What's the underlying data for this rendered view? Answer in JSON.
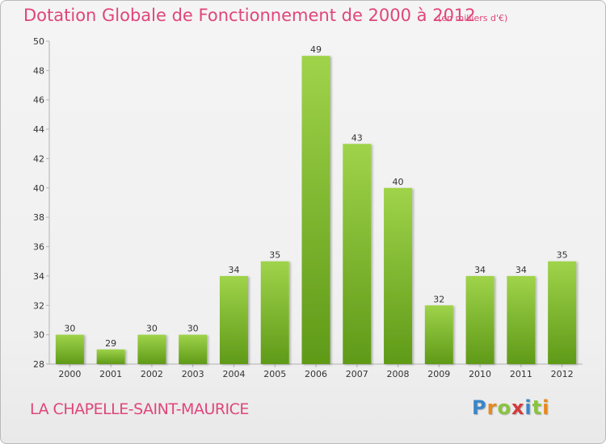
{
  "header": {
    "title": "Dotation Globale de Fonctionnement de 2000 à 2012",
    "subtitle": "(en milliers d'€)"
  },
  "footer": {
    "location": "LA CHAPELLE-SAINT-MAURICE",
    "brand": "Proxiti",
    "brand_colors": [
      "#3a86c8",
      "#e8891c",
      "#8ac43f",
      "#d23c3c",
      "#3a86c8",
      "#8ac43f",
      "#e8891c"
    ]
  },
  "colors": {
    "bar_top": "#9fd34a",
    "bar_bottom": "#5f9a18",
    "title": "#e0457b",
    "axis_text": "#333333"
  },
  "chart_data": {
    "type": "bar",
    "title": "Dotation Globale de Fonctionnement de 2000 à 2012",
    "subtitle": "(en milliers d'€)",
    "categories": [
      "2000",
      "2001",
      "2002",
      "2003",
      "2004",
      "2005",
      "2006",
      "2007",
      "2008",
      "2009",
      "2010",
      "2011",
      "2012"
    ],
    "values": [
      30,
      29,
      30,
      30,
      34,
      35,
      49,
      43,
      40,
      32,
      34,
      34,
      35
    ],
    "ylim": [
      28,
      50
    ],
    "yticks": [
      28,
      30,
      32,
      34,
      36,
      38,
      40,
      42,
      44,
      46,
      48,
      50
    ],
    "xlabel": "",
    "ylabel": "",
    "grid": false
  }
}
